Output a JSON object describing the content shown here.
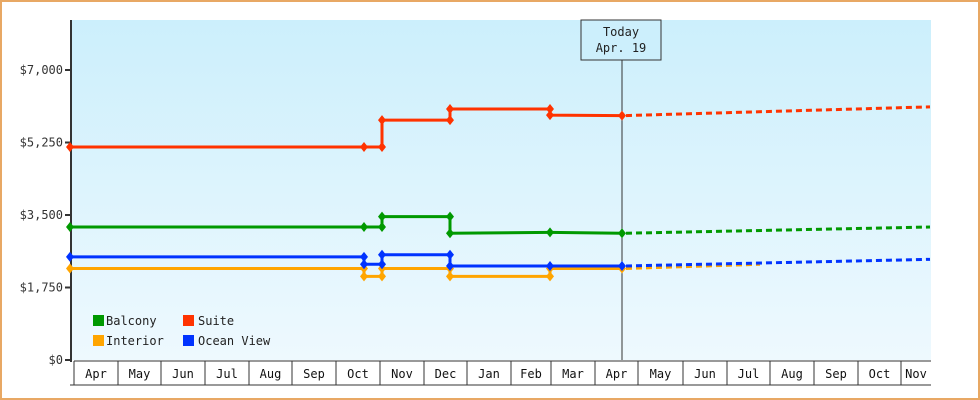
{
  "chart_data": {
    "type": "line",
    "title": "",
    "xlabel": "",
    "ylabel": "",
    "ylim": [
      0,
      7000
    ],
    "y_ticks": [
      "$0",
      "$1,750",
      "$3,500",
      "$5,250",
      "$7,000"
    ],
    "y_tick_values": [
      0,
      1750,
      3500,
      5250,
      7000
    ],
    "x_tick_labels": [
      "Apr",
      "May",
      "Jun",
      "Jul",
      "Aug",
      "Sep",
      "Oct",
      "Nov",
      "Dec",
      "Jan",
      "Feb",
      "Mar",
      "Apr",
      "May",
      "Jun",
      "Jul",
      "Aug",
      "Sep",
      "Oct",
      "Nov"
    ],
    "grid": false,
    "legend_position": "lower-left inside",
    "annotation": {
      "line1": "Today",
      "line2": "Apr. 19"
    },
    "series": [
      {
        "name": "Balcony",
        "color": "#009900",
        "points_historic": [
          [
            "Apr",
            3210
          ],
          [
            "Oct",
            3210
          ],
          [
            "Oct-late",
            3210
          ],
          [
            "Oct-late",
            3460
          ],
          [
            "Dec",
            3460
          ],
          [
            "Dec",
            3060
          ],
          [
            "Feb",
            3080
          ],
          [
            "Apr 19",
            3060
          ]
        ],
        "forecast_end": [
          "Nov",
          3210
        ]
      },
      {
        "name": "Suite",
        "color": "#ff3300",
        "points_historic": [
          [
            "Apr",
            5140
          ],
          [
            "Oct",
            5140
          ],
          [
            "Oct-late",
            5140
          ],
          [
            "Oct-late",
            5790
          ],
          [
            "Dec",
            5790
          ],
          [
            "Dec",
            6060
          ],
          [
            "Feb",
            6060
          ],
          [
            "Feb",
            5910
          ],
          [
            "Apr 19",
            5900
          ]
        ],
        "forecast_end": [
          "Nov",
          6110
        ]
      },
      {
        "name": "Interior",
        "color": "#ffa500",
        "points_historic": [
          [
            "Apr",
            2210
          ],
          [
            "Oct",
            2210
          ],
          [
            "Oct",
            2020
          ],
          [
            "Oct-late",
            2020
          ],
          [
            "Oct-late",
            2210
          ],
          [
            "Dec",
            2210
          ],
          [
            "Dec",
            2020
          ],
          [
            "Feb",
            2020
          ],
          [
            "Feb",
            2210
          ],
          [
            "Apr 19",
            2210
          ]
        ],
        "forecast_end": [
          "Aug",
          2310
        ]
      },
      {
        "name": "Ocean View",
        "color": "#0033ff",
        "points_historic": [
          [
            "Apr",
            2490
          ],
          [
            "Oct",
            2490
          ],
          [
            "Oct",
            2310
          ],
          [
            "Oct-late",
            2310
          ],
          [
            "Oct-late",
            2540
          ],
          [
            "Dec",
            2540
          ],
          [
            "Dec",
            2270
          ],
          [
            "Feb",
            2270
          ],
          [
            "Apr 19",
            2270
          ]
        ],
        "forecast_end": [
          "Nov",
          2430
        ]
      }
    ]
  },
  "legend": [
    {
      "label": "Balcony",
      "color": "#009900"
    },
    {
      "label": "Suite",
      "color": "#ff3300"
    },
    {
      "label": "Interior",
      "color": "#ffa500"
    },
    {
      "label": "Ocean View",
      "color": "#0033ff"
    }
  ],
  "colors": {
    "frame": "#e8a864",
    "plot_top": "#cceffc",
    "plot_bottom": "#eef9fe",
    "axis": "#333333"
  }
}
